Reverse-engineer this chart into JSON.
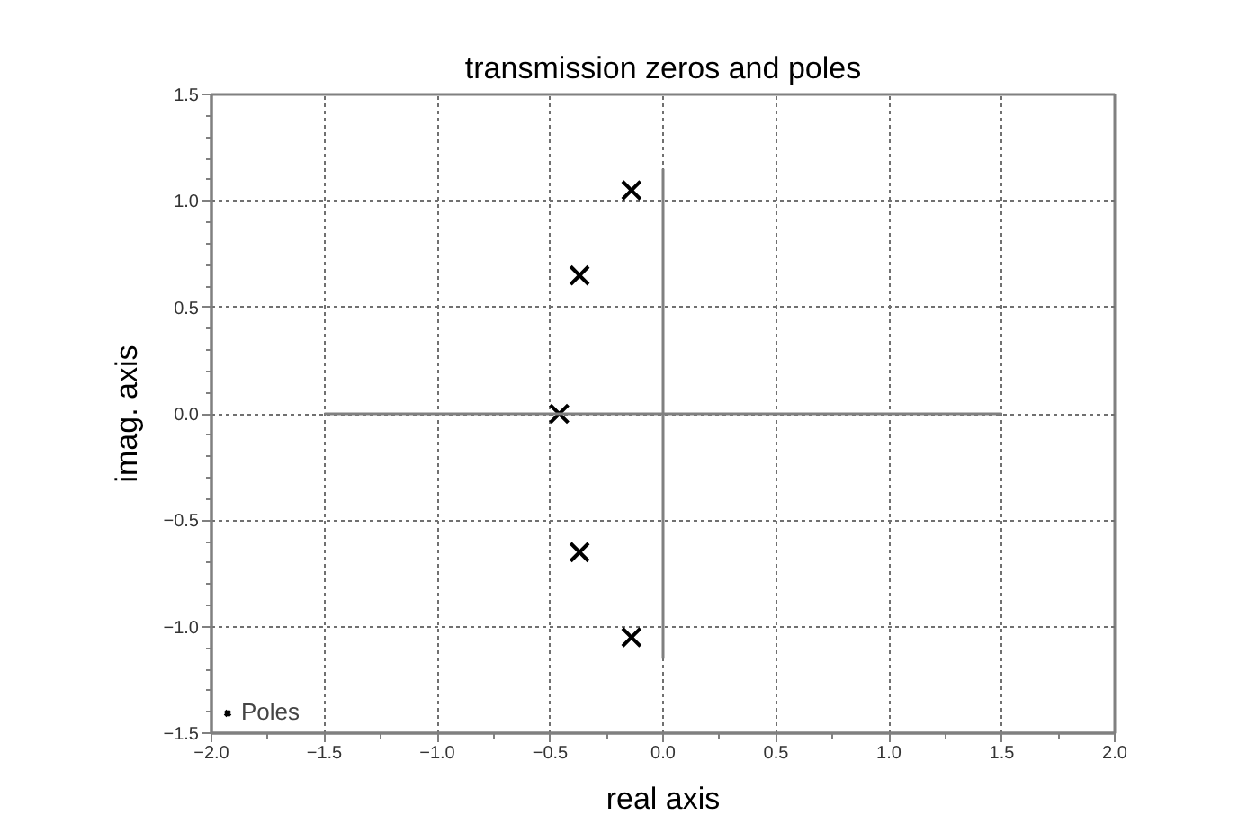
{
  "chart_data": {
    "type": "scatter",
    "title": "transmission zeros and poles",
    "xlabel": "real axis",
    "ylabel": "imag. axis",
    "series": [
      {
        "name": "Poles",
        "color": "#000000",
        "marker": "cross",
        "x": [
          -0.14,
          -0.37,
          -0.46,
          -0.37,
          -0.14
        ],
        "values": [
          1.05,
          0.65,
          0,
          -0.65,
          -1.05
        ]
      },
      {
        "type": "line",
        "color": "#808080",
        "line_style": "solid",
        "x": [
          -1.5,
          1.5
        ],
        "values": [
          0,
          0
        ]
      },
      {
        "type": "line",
        "color": "#808080",
        "line_style": "solid",
        "x": [
          0,
          0
        ],
        "values": [
          -1.15,
          1.15
        ]
      }
    ],
    "xlim": [
      -2,
      2
    ],
    "ylim": [
      -1.5,
      1.5
    ],
    "xticks": [
      {
        "value": -2,
        "label": "−2.0"
      },
      {
        "value": -1.5,
        "label": "−1.5"
      },
      {
        "value": -1,
        "label": "−1.0"
      },
      {
        "value": -0.5,
        "label": "−0.5"
      },
      {
        "value": 0,
        "label": "0.0"
      },
      {
        "value": 0.5,
        "label": "0.5"
      },
      {
        "value": 1,
        "label": "1.0"
      },
      {
        "value": 1.5,
        "label": "1.5"
      },
      {
        "value": 2,
        "label": "2.0"
      }
    ],
    "yticks": [
      {
        "value": -1.5,
        "label": "−1.5"
      },
      {
        "value": -1,
        "label": "−1.0"
      },
      {
        "value": -0.5,
        "label": "−0.5"
      },
      {
        "value": 0,
        "label": "0.0"
      },
      {
        "value": 0.5,
        "label": "0.5"
      },
      {
        "value": 1,
        "label": "1.0"
      },
      {
        "value": 1.5,
        "label": "1.5"
      }
    ],
    "grid": true,
    "legend": "bottom left"
  }
}
